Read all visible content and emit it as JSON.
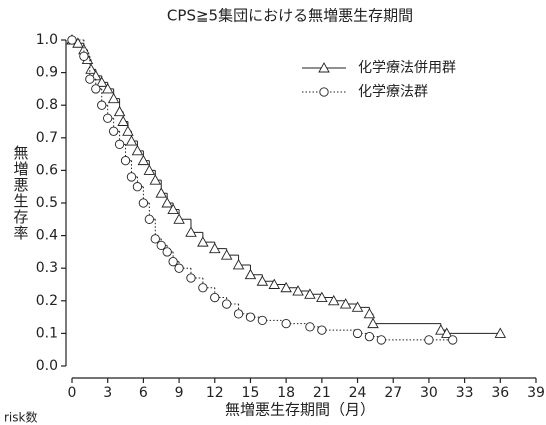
{
  "chart_data": {
    "type": "km",
    "title": "CPS≧5集団における無増悪生存期間",
    "x_label": "無増悪生存期間（月）",
    "y_label": "無増悪生存率",
    "risk_label": "risk数",
    "xlim": [
      0,
      39
    ],
    "ylim": [
      0,
      1
    ],
    "xticks": [
      0,
      3,
      6,
      9,
      12,
      15,
      18,
      21,
      24,
      27,
      30,
      33,
      36,
      39
    ],
    "yticks": [
      {
        "value": 0,
        "label": "0.0"
      },
      {
        "value": 0.1,
        "label": "0.1"
      },
      {
        "value": 0.2,
        "label": "0.2"
      },
      {
        "value": 0.3,
        "label": "0.3"
      },
      {
        "value": 0.4,
        "label": "0.4"
      },
      {
        "value": 0.5,
        "label": "0.5"
      },
      {
        "value": 0.6,
        "label": "0.6"
      },
      {
        "value": 0.7,
        "label": "0.7"
      },
      {
        "value": 0.8,
        "label": "0.8"
      },
      {
        "value": 0.9,
        "label": "0.9"
      },
      {
        "value": 1,
        "label": "1.0"
      }
    ],
    "series": [
      {
        "name": "化学療法併用群",
        "color": "#222222",
        "marker": "triangle",
        "dash": "solid",
        "x": [
          0,
          0.5,
          1,
          1.3,
          1.6,
          2,
          2.5,
          3,
          3.5,
          4,
          4.3,
          4.7,
          5,
          5.5,
          6,
          6.5,
          7,
          7.5,
          8,
          8.5,
          9,
          10,
          11,
          12,
          13,
          14,
          15,
          16,
          17,
          18,
          19,
          20,
          21,
          22,
          23,
          24,
          25,
          25.3,
          31,
          31.5,
          36
        ],
        "values": [
          1.0,
          0.99,
          0.97,
          0.94,
          0.91,
          0.89,
          0.87,
          0.85,
          0.82,
          0.78,
          0.75,
          0.72,
          0.69,
          0.66,
          0.63,
          0.6,
          0.57,
          0.53,
          0.5,
          0.48,
          0.45,
          0.41,
          0.38,
          0.36,
          0.34,
          0.31,
          0.28,
          0.26,
          0.25,
          0.24,
          0.23,
          0.22,
          0.21,
          0.2,
          0.19,
          0.18,
          0.16,
          0.13,
          0.11,
          0.1,
          0.1
        ]
      },
      {
        "name": "化学療法群",
        "color": "#222222",
        "marker": "circle",
        "dash": "dotted",
        "x": [
          0,
          1,
          1.5,
          2,
          2.5,
          3,
          3.5,
          4,
          4.5,
          5,
          5.5,
          6,
          6.5,
          7,
          7.5,
          8,
          8.5,
          9,
          10,
          11,
          12,
          13,
          14,
          15,
          16,
          18,
          20,
          21,
          24,
          25,
          26,
          30,
          32
        ],
        "values": [
          1.0,
          0.95,
          0.88,
          0.85,
          0.8,
          0.76,
          0.72,
          0.68,
          0.63,
          0.58,
          0.55,
          0.5,
          0.45,
          0.39,
          0.37,
          0.35,
          0.32,
          0.3,
          0.27,
          0.24,
          0.21,
          0.19,
          0.16,
          0.15,
          0.14,
          0.13,
          0.12,
          0.11,
          0.1,
          0.09,
          0.08,
          0.08,
          0.08
        ]
      }
    ]
  }
}
